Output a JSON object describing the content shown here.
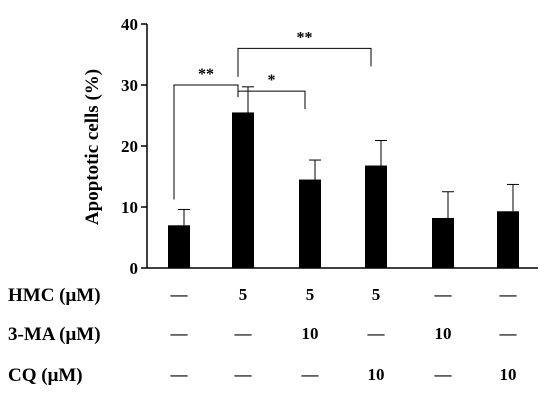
{
  "chart_data": {
    "type": "bar",
    "ylabel": "Apoptotic cells (%)",
    "ylim": [
      0,
      40
    ],
    "yticks": [
      "0",
      "10",
      "20",
      "30",
      "40"
    ],
    "values": [
      7,
      25.5,
      14.5,
      16.8,
      8.2,
      9.3
    ],
    "errors": [
      2.6,
      4.2,
      3.2,
      4.1,
      4.3,
      4.4
    ],
    "bar_color": "#000000",
    "significance": [
      {
        "from": 0,
        "to": 1,
        "label": "**",
        "level": 30
      },
      {
        "from": 1,
        "to": 2,
        "label": "*",
        "level": 29
      },
      {
        "from": 1,
        "to": 3,
        "label": "**",
        "level": 36
      }
    ]
  },
  "conditions": [
    {
      "label": "HMC (μM)",
      "cells": [
        "—",
        "5",
        "5",
        "5",
        "—",
        "—"
      ]
    },
    {
      "label": "3-MA (μM)",
      "cells": [
        "—",
        "—",
        "10",
        "—",
        "10",
        "—"
      ]
    },
    {
      "label": "CQ (μM)",
      "cells": [
        "—",
        "—",
        "—",
        "10",
        "—",
        "10"
      ]
    }
  ]
}
